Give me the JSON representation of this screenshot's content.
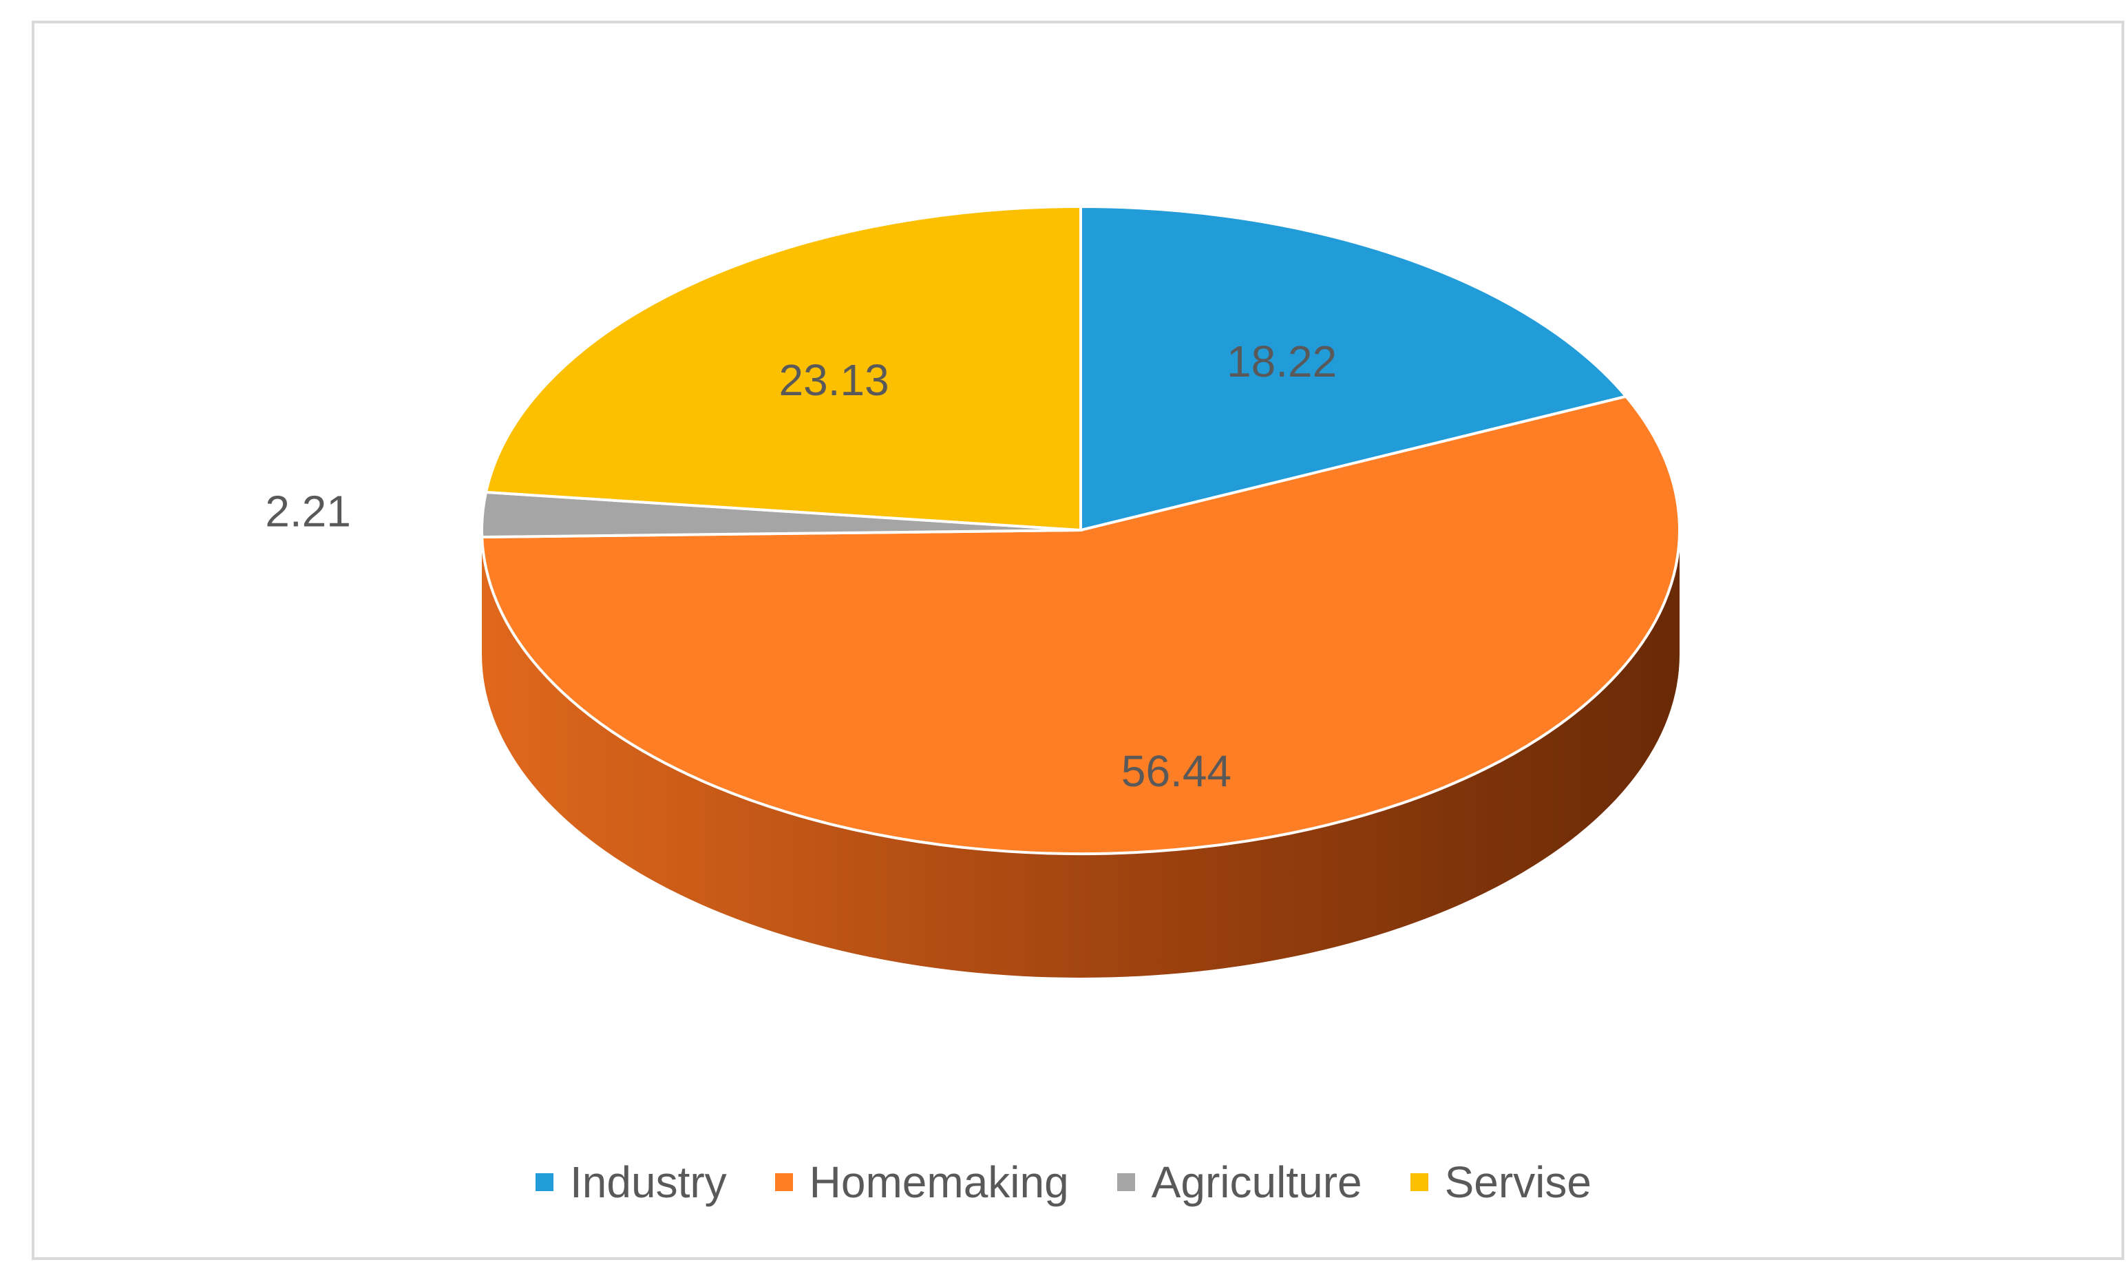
{
  "chart_data": {
    "type": "pie",
    "style": "3d",
    "categories": [
      "Industry",
      "Homemaking",
      "Agriculture",
      "Servise"
    ],
    "values": [
      18.22,
      56.44,
      2.21,
      23.13
    ],
    "labels": [
      "18.22",
      "56.44",
      "2.21",
      "23.13"
    ],
    "colors": [
      "#229BD9",
      "#FD7E24",
      "#A5A5A5",
      "#FDC000"
    ],
    "side_colors": {
      "light": "#E0681C",
      "dark": "#6A2A06"
    },
    "legend_position": "bottom"
  }
}
